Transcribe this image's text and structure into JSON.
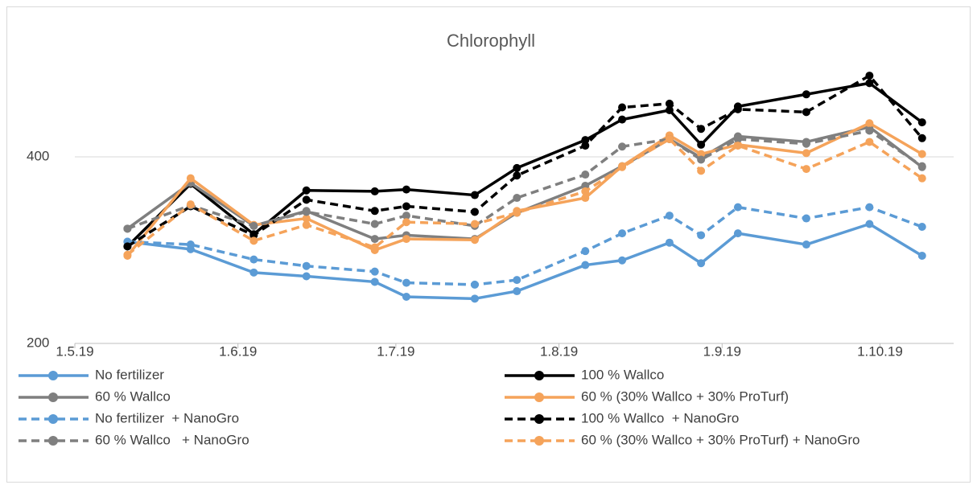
{
  "chart_data": {
    "type": "line",
    "title": "Chlorophyll",
    "x": [
      "11.5.19",
      "23.5.19",
      "4.6.19",
      "14.6.19",
      "27.6.19",
      "3.7.19",
      "16.7.19",
      "24.7.19",
      "6.8.19",
      "13.8.19",
      "22.8.19",
      "28.8.19",
      "4.9.19",
      "17.9.19",
      "29.9.19",
      "9.10.19"
    ],
    "xlim": [
      "1.5.19",
      "15.10.19"
    ],
    "xticks": [
      "1.5.19",
      "1.6.19",
      "1.7.19",
      "1.8.19",
      "1.9.19",
      "1.10.19"
    ],
    "ylim": [
      200,
      500
    ],
    "yticks": [
      200,
      400
    ],
    "grid": true,
    "series": [
      {
        "name": "No fertilizer",
        "color": "#5b9bd5",
        "line_style": "solid",
        "values": [
          309,
          301,
          276,
          272,
          266,
          250,
          248,
          256,
          284,
          289,
          308,
          286,
          318,
          306,
          328,
          294
        ]
      },
      {
        "name": "100 % Wallco",
        "color": "#000000",
        "line_style": "solid",
        "values": [
          304,
          371,
          317,
          364,
          363,
          365,
          359,
          388,
          418,
          440,
          450,
          413,
          454,
          467,
          479,
          437
        ]
      },
      {
        "name": "60 % Wallco",
        "color": "#7f7f7f",
        "line_style": "solid",
        "values": [
          323,
          372,
          326,
          342,
          312,
          316,
          312,
          340,
          369,
          390,
          419,
          399,
          422,
          416,
          432,
          389
        ]
      },
      {
        "name": "60 % (30% Wallco + 30% ProTurf)",
        "color": "#f5a35a",
        "line_style": "solid",
        "values": [
          294,
          377,
          327,
          334,
          300,
          312,
          311,
          342,
          356,
          390,
          423,
          403,
          413,
          404,
          436,
          403
        ]
      },
      {
        "name": "No fertilizer  + NanoGro",
        "color": "#5b9bd5",
        "line_style": "dashed",
        "values": [
          309,
          306,
          290,
          283,
          277,
          265,
          263,
          268,
          299,
          318,
          337,
          316,
          346,
          334,
          346,
          325
        ]
      },
      {
        "name": "100 % Wallco  + NanoGro",
        "color": "#000000",
        "line_style": "dashed",
        "values": [
          304,
          347,
          316,
          354,
          342,
          347,
          341,
          380,
          412,
          453,
          457,
          430,
          451,
          448,
          487,
          420
        ]
      },
      {
        "name": "60 % Wallco   + NanoGro",
        "color": "#7f7f7f",
        "line_style": "dashed",
        "values": [
          323,
          348,
          326,
          341,
          328,
          337,
          326,
          356,
          381,
          411,
          419,
          397,
          419,
          414,
          428,
          390
        ]
      },
      {
        "name": "60 % (30% Wallco + 30% ProTurf) + NanoGro",
        "color": "#f5a35a",
        "line_style": "dashed",
        "values": [
          295,
          349,
          310,
          327,
          303,
          330,
          328,
          340,
          363,
          389,
          419,
          385,
          412,
          387,
          416,
          377
        ]
      }
    ]
  }
}
